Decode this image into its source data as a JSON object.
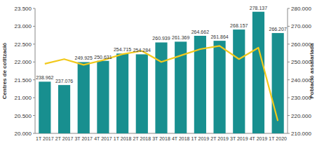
{
  "chart_data": {
    "type": "bar",
    "categories": [
      "1T 2017",
      "2T 2017",
      "3T 2017",
      "4T 2017",
      "1T 2018",
      "2T 2018",
      "3T 2018",
      "4T 2018",
      "1T 2019",
      "2T 2019",
      "3T 2019",
      "4T 2019",
      "1T 2020"
    ],
    "y_label": "Centres de cotització",
    "y2_label": "Població assalariada",
    "series": [
      {
        "type": "bar",
        "axis": "y2",
        "color": "#188f8f",
        "data_labels": true,
        "values": [
          238962,
          237076,
          249925,
          250631,
          254715,
          254284,
          260939,
          261369,
          264662,
          261864,
          268157,
          278137,
          266207
        ],
        "value_labels": [
          "238.962",
          "237.076",
          "249.925",
          "250.631",
          "254.715",
          "254.284",
          "260.939",
          "261.369",
          "264.662",
          "261.864",
          "268.157",
          "278.137",
          "266.207"
        ]
      },
      {
        "type": "line",
        "axis": "y",
        "color": "#f2c91c",
        "marker": "none",
        "values": [
          21950,
          22080,
          21920,
          22050,
          22220,
          22310,
          22000,
          22180,
          22360,
          22450,
          22080,
          22400,
          20350
        ]
      }
    ],
    "ylim": [
      20000,
      23500
    ],
    "yticks": [
      {
        "value": 20000,
        "label": "20.000"
      },
      {
        "value": 20500,
        "label": "20.500"
      },
      {
        "value": 21000,
        "label": "21.000"
      },
      {
        "value": 21500,
        "label": "21.500"
      },
      {
        "value": 22000,
        "label": "22.000"
      },
      {
        "value": 22500,
        "label": "22.500"
      },
      {
        "value": 23000,
        "label": "23.000"
      },
      {
        "value": 23500,
        "label": "23.500"
      }
    ],
    "y2lim": [
      210000,
      280000
    ],
    "y2ticks": [
      {
        "value": 210000,
        "label": "210.000"
      },
      {
        "value": 220000,
        "label": "220.000"
      },
      {
        "value": 230000,
        "label": "230.000"
      },
      {
        "value": 240000,
        "label": "240.000"
      },
      {
        "value": 250000,
        "label": "250.000"
      },
      {
        "value": 260000,
        "label": "260.000"
      },
      {
        "value": 270000,
        "label": "270.000"
      },
      {
        "value": 280000,
        "label": "280.000"
      }
    ],
    "grid": false
  }
}
